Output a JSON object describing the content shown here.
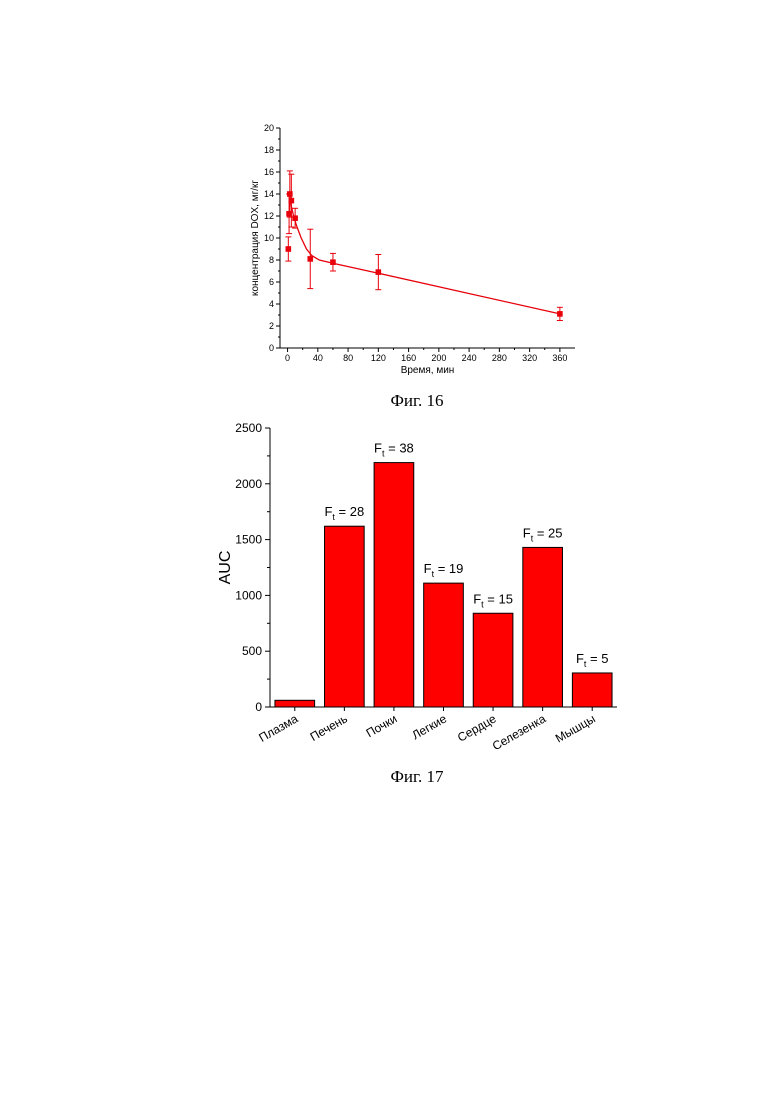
{
  "chart_data": [
    {
      "type": "scatter",
      "xlabel": "Время, мин",
      "ylabel": "концентрация DOX, мг/кг",
      "xlim": [
        -10,
        380
      ],
      "ylim": [
        0,
        20
      ],
      "xticks": [
        0,
        40,
        80,
        120,
        160,
        200,
        240,
        280,
        320,
        360
      ],
      "yticks": [
        0,
        2,
        4,
        6,
        8,
        10,
        12,
        14,
        16,
        18,
        20
      ],
      "color": "#e8000b",
      "series": [
        {
          "points": [
            {
              "x": 1,
              "y": 9.0,
              "err": 1.1
            },
            {
              "x": 2,
              "y": 12.2,
              "err": 1.8
            },
            {
              "x": 3,
              "y": 14.0,
              "err": 2.1
            },
            {
              "x": 5,
              "y": 13.4,
              "err": 2.4
            },
            {
              "x": 10,
              "y": 11.8,
              "err": 0.9
            },
            {
              "x": 30,
              "y": 8.1,
              "err": 2.7
            },
            {
              "x": 60,
              "y": 7.8,
              "err": 0.8
            },
            {
              "x": 120,
              "y": 6.9,
              "err": 1.6
            },
            {
              "x": 360,
              "y": 3.1,
              "err": 0.6
            }
          ],
          "fit": [
            {
              "x": 3,
              "y": 14.0
            },
            {
              "x": 5,
              "y": 12.9
            },
            {
              "x": 8,
              "y": 12.0
            },
            {
              "x": 12,
              "y": 11.1
            },
            {
              "x": 18,
              "y": 10.0
            },
            {
              "x": 25,
              "y": 9.0
            },
            {
              "x": 32,
              "y": 8.4
            },
            {
              "x": 42,
              "y": 8.0
            },
            {
              "x": 60,
              "y": 7.7
            },
            {
              "x": 120,
              "y": 6.8
            },
            {
              "x": 360,
              "y": 3.1
            }
          ]
        }
      ],
      "caption": "Фиг. 16"
    },
    {
      "type": "bar",
      "categories": [
        "Плазма",
        "Печень",
        "Почки",
        "Легкие",
        "Сердце",
        "Селезенка",
        "Мышцы"
      ],
      "values": [
        60,
        1620,
        2190,
        1110,
        840,
        1430,
        305
      ],
      "annotations": [
        {
          "base": "",
          "sub": "",
          "rest": ""
        },
        {
          "base": "F",
          "sub": "t",
          "rest": " = 28"
        },
        {
          "base": "F",
          "sub": "t",
          "rest": " = 38"
        },
        {
          "base": "F",
          "sub": "t",
          "rest": " = 19"
        },
        {
          "base": "F",
          "sub": "t",
          "rest": " = 15"
        },
        {
          "base": "F",
          "sub": "t",
          "rest": " = 25"
        },
        {
          "base": "F",
          "sub": "t",
          "rest": " = 5"
        }
      ],
      "ylabel": "AUC",
      "xlabel": "",
      "ylim": [
        0,
        2500
      ],
      "yticks": [
        0,
        500,
        1000,
        1500,
        2000,
        2500
      ],
      "color": "#ff0000",
      "caption": "Фиг. 17"
    }
  ]
}
